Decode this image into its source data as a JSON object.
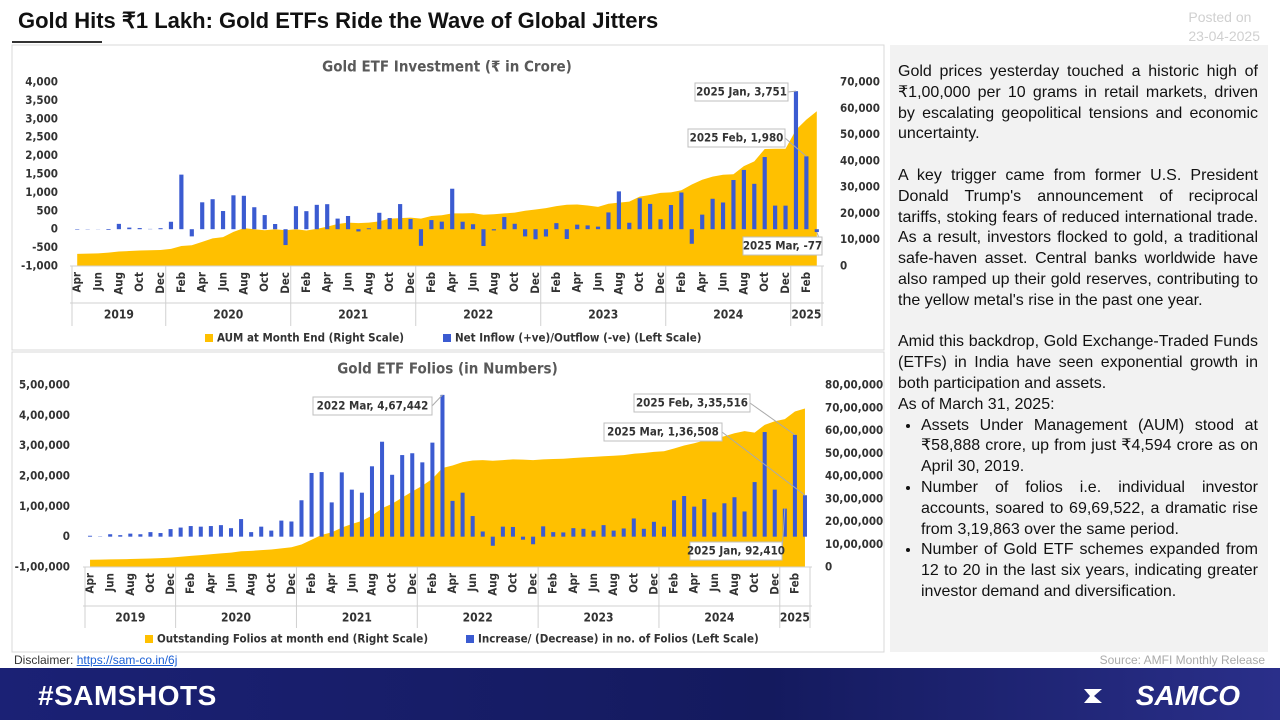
{
  "header": {
    "title": "Gold Hits ₹1 Lakh: Gold ETFs Ride the Wave of Global Jitters",
    "posted_label": "Posted on",
    "posted_date": "23-04-2025"
  },
  "chart_data": [
    {
      "type": "combo",
      "title": "Gold ETF Investment (₹ in Crore)",
      "categories": [
        "Apr",
        null,
        "Jun",
        null,
        "Aug",
        null,
        "Oct",
        null,
        "Dec",
        null,
        "Feb",
        null,
        "Apr",
        null,
        "Jun",
        null,
        "Aug",
        null,
        "Oct",
        null,
        "Dec",
        null,
        "Feb",
        null,
        "Apr",
        null,
        "Jun",
        null,
        "Aug",
        null,
        "Oct",
        null,
        "Dec",
        null,
        "Feb",
        null,
        "Apr",
        null,
        "Jun",
        null,
        "Aug",
        null,
        "Oct",
        null,
        "Dec",
        null,
        "Feb",
        null,
        "Apr",
        null,
        "Jun",
        null,
        "Aug",
        null,
        "Oct",
        null,
        "Dec",
        null,
        "Feb",
        null,
        "Apr",
        null,
        "Jun",
        null,
        "Aug",
        null,
        "Oct",
        null,
        "Dec",
        null,
        "Feb",
        null
      ],
      "x_groups": [
        "2019",
        "2020",
        "2021",
        "2022",
        "2023",
        "2024",
        "2025"
      ],
      "series": [
        {
          "name": "AUM at Month End (Right Scale)",
          "type": "area",
          "axis": "y2",
          "color": "#ffc000",
          "values": [
            4594,
            4700,
            4800,
            5100,
            5500,
            5700,
            5900,
            6000,
            6100,
            6500,
            7600,
            7900,
            9200,
            10500,
            11000,
            13000,
            14400,
            14000,
            13600,
            14000,
            13600,
            14000,
            13500,
            14100,
            15000,
            16000,
            16500,
            16300,
            16500,
            17000,
            18000,
            18200,
            18400,
            18000,
            19000,
            19300,
            20000,
            20000,
            20100,
            19500,
            19700,
            20000,
            20300,
            21000,
            21500,
            22000,
            22800,
            23300,
            23400,
            23000,
            22500,
            23700,
            24100,
            24500,
            26400,
            27000,
            27800,
            28000,
            28800,
            31000,
            32800,
            34000,
            34700,
            34900,
            38000,
            39800,
            44500,
            44600,
            44600,
            51800,
            55700,
            58888
          ]
        },
        {
          "name": "Net Inflow (+ve)/Outflow (-ve) (Left Scale)",
          "type": "bar",
          "axis": "y",
          "color": "#3b5bd1",
          "values": [
            -13,
            -7,
            -4,
            -20,
            145,
            44,
            31,
            8,
            27,
            202,
            1483,
            -195,
            731,
            815,
            494,
            921,
            908,
            597,
            384,
            141,
            -431,
            625,
            490,
            662,
            680,
            288,
            359,
            -61,
            24,
            446,
            303,
            683,
            278,
            -452,
            248,
            205,
            1100,
            203,
            135,
            -457,
            -33,
            330,
            147,
            -196,
            -273,
            -199,
            165,
            -266,
            124,
            103,
            70,
            456,
            1028,
            175,
            841,
            688,
            270,
            657,
            997,
            -396,
            396,
            827,
            726,
            1337,
            1611,
            1233,
            1961,
            641,
            640,
            3751,
            1980,
            -77
          ]
        }
      ],
      "ylim": [
        -1000,
        4000
      ],
      "yticks": [
        {
          "value": 4000,
          "label": "4,000"
        },
        {
          "value": 3500,
          "label": "3,500"
        },
        {
          "value": 3000,
          "label": "3,000"
        },
        {
          "value": 2500,
          "label": "2,500"
        },
        {
          "value": 2000,
          "label": "2,000"
        },
        {
          "value": 1500,
          "label": "1,500"
        },
        {
          "value": 1000,
          "label": "1,000"
        },
        500,
        0,
        -500,
        {
          "value": -1000,
          "label": "-1,000"
        }
      ],
      "y2lim": [
        0,
        70000
      ],
      "y2ticks": [
        {
          "value": 70000,
          "label": "70,000"
        },
        {
          "value": 60000,
          "label": "60,000"
        },
        {
          "value": 50000,
          "label": "50,000"
        },
        {
          "value": 40000,
          "label": "40,000"
        },
        {
          "value": 30000,
          "label": "30,000"
        },
        {
          "value": 20000,
          "label": "20,000"
        },
        {
          "value": 10000,
          "label": "10,000"
        },
        0
      ],
      "annotations": [
        "2025 Jan, 3,751",
        "2025 Feb, 1,980",
        "2025 Mar, -77"
      ]
    },
    {
      "type": "combo",
      "title": "Gold ETF Folios (in Numbers)",
      "categories": [
        "Apr",
        null,
        "Jun",
        null,
        "Aug",
        null,
        "Oct",
        null,
        "Dec",
        null,
        "Feb",
        null,
        "Apr",
        null,
        "Jun",
        null,
        "Aug",
        null,
        "Oct",
        null,
        "Dec",
        null,
        "Feb",
        null,
        "Apr",
        null,
        "Jun",
        null,
        "Aug",
        null,
        "Oct",
        null,
        "Dec",
        null,
        "Feb",
        null,
        "Apr",
        null,
        "Jun",
        null,
        "Aug",
        null,
        "Oct",
        null,
        "Dec",
        null,
        "Feb",
        null,
        "Apr",
        null,
        "Jun",
        null,
        "Aug",
        null,
        "Oct",
        null,
        "Dec",
        null,
        "Feb",
        null,
        "Apr",
        null,
        "Jun",
        null,
        "Aug",
        null,
        "Oct",
        null,
        "Dec",
        null,
        "Feb",
        null
      ],
      "x_groups": [
        "2019",
        "2020",
        "2021",
        "2022",
        "2023",
        "2024",
        "2025"
      ],
      "series": [
        {
          "name": "Outstanding Folios at month end (Right Scale)",
          "type": "area",
          "axis": "y2",
          "color": "#ffc000",
          "values": [
            319863,
            325000,
            333000,
            340000,
            350000,
            360000,
            375000,
            390000,
            410000,
            450000,
            490000,
            520000,
            560000,
            600000,
            630000,
            690000,
            710000,
            740000,
            770000,
            820000,
            870000,
            990000,
            1200000,
            1410000,
            1520000,
            1730000,
            1890000,
            2030000,
            2260000,
            2580000,
            2780000,
            3050000,
            3320000,
            3570000,
            3880000,
            4350000,
            4460000,
            4610000,
            4680000,
            4700000,
            4670000,
            4700000,
            4730000,
            4720000,
            4700000,
            4730000,
            4750000,
            4760000,
            4790000,
            4820000,
            4840000,
            4870000,
            4890000,
            4920000,
            4980000,
            5010000,
            5060000,
            5090000,
            5210000,
            5340000,
            5440000,
            5560000,
            5640000,
            5750000,
            5880000,
            5970000,
            5905000,
            6250000,
            6405000,
            6498000,
            6833000,
            6969522
          ]
        },
        {
          "name": "Increase/ (Decrease) in no. of Folios (Left Scale)",
          "type": "bar",
          "axis": "y",
          "color": "#3b5bd1",
          "values": [
            3000,
            -1000,
            8000,
            5000,
            10000,
            8000,
            15000,
            12000,
            25000,
            30000,
            35000,
            33000,
            35000,
            38000,
            28000,
            58000,
            15000,
            33000,
            20000,
            53000,
            50000,
            120000,
            210000,
            213000,
            113000,
            212000,
            155000,
            145000,
            232000,
            313000,
            204000,
            269000,
            275000,
            245000,
            310000,
            467442,
            118000,
            145000,
            68000,
            17000,
            -30000,
            33000,
            32000,
            -10000,
            -25000,
            34000,
            15000,
            14000,
            28000,
            26000,
            20000,
            38000,
            20000,
            27000,
            60000,
            26000,
            49000,
            33000,
            120000,
            134000,
            99000,
            124000,
            80000,
            110000,
            130000,
            83000,
            180000,
            345000,
            155000,
            92410,
            335516,
            136508
          ]
        }
      ],
      "ylim": [
        -100000,
        500000
      ],
      "yticks": [
        {
          "value": 500000,
          "label": "5,00,000"
        },
        {
          "value": 400000,
          "label": "4,00,000"
        },
        {
          "value": 300000,
          "label": "3,00,000"
        },
        {
          "value": 200000,
          "label": "2,00,000"
        },
        {
          "value": 100000,
          "label": "1,00,000"
        },
        0,
        {
          "value": -100000,
          "label": "-1,00,000"
        }
      ],
      "y2lim": [
        0,
        8000000
      ],
      "y2ticks": [
        {
          "value": 8000000,
          "label": "80,00,000"
        },
        {
          "value": 7000000,
          "label": "70,00,000"
        },
        {
          "value": 6000000,
          "label": "60,00,000"
        },
        {
          "value": 5000000,
          "label": "50,00,000"
        },
        {
          "value": 4000000,
          "label": "40,00,000"
        },
        {
          "value": 3000000,
          "label": "30,00,000"
        },
        {
          "value": 2000000,
          "label": "20,00,000"
        },
        {
          "value": 1000000,
          "label": "10,00,000"
        },
        0
      ],
      "annotations": [
        "2022 Mar, 4,67,442",
        "2025 Feb, 3,35,516",
        "2025 Mar, 1,36,508",
        "2025 Jan, 92,410"
      ]
    }
  ],
  "text_panel": {
    "paragraphs": [
      "Gold prices yesterday touched a historic high of ₹1,00,000 per 10 grams in retail markets, driven by escalating geopolitical tensions and economic uncertainty.",
      "A key trigger came from former U.S. President Donald Trump's announcement of reciprocal tariffs, stoking fears of reduced international trade. As a result, investors flocked to gold, a traditional safe-haven asset. Central banks worldwide have also ramped up their gold reserves, contributing to the yellow metal's rise in the past one year.",
      "Amid this backdrop, Gold Exchange-Traded Funds (ETFs) in India have seen exponential growth in both participation and assets."
    ],
    "list_intro": "As of March 31, 2025:",
    "bullets": [
      "Assets Under Management (AUM) stood at ₹58,888 crore, up from just ₹4,594 crore as on April 30, 2019.",
      "Number of folios i.e. individual investor accounts, soared to 69,69,522, a dramatic rise from 3,19,863 over the same period.",
      "Number of Gold ETF schemes expanded from 12 to 20 in the last six years, indicating greater investor demand and diversification."
    ]
  },
  "footer": {
    "disclaimer_label": "Disclaimer:",
    "link": "https://sam-co.in/6j",
    "source": "Source: AMFI Monthly Release"
  },
  "banner": {
    "hashtag": "#SAMSHOTS",
    "brand": "SAMCO"
  }
}
